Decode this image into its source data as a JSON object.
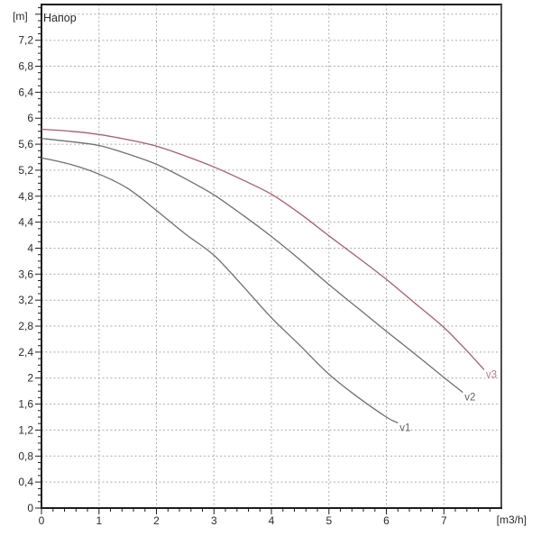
{
  "page": {
    "background_color": "#ffffff"
  },
  "chart_data": {
    "type": "line",
    "title": "Напор",
    "ylabel": "[m]",
    "xlabel": "[m3/h]",
    "x_range": [
      0,
      8
    ],
    "y_range": [
      0,
      7.75
    ],
    "x_major_step": 1,
    "x_minor_step": 0.2,
    "y_major_step": 0.4,
    "y_minor_step": 0.1,
    "x_tick_labels": [
      "0",
      "1",
      "2",
      "3",
      "4",
      "5",
      "6",
      "7"
    ],
    "y_tick_labels": [
      "0",
      "0,4",
      "0,8",
      "1,2",
      "1,6",
      "2",
      "2,4",
      "2,8",
      "3,2",
      "3,6",
      "4",
      "4,4",
      "4,8",
      "5,2",
      "5,6",
      "6",
      "6,4",
      "6,8",
      "7,2"
    ],
    "grid": {
      "show": true,
      "color": "#ababab",
      "dash": "2 2.5"
    },
    "colors": {
      "axis": "#1c1c1c",
      "frame_top": "#1c1c1c",
      "frame_right": "#4f4f4f",
      "tick": "#1c1c1c",
      "text": "#2a2a2a"
    },
    "legend_position": "none",
    "series": [
      {
        "name": "v1",
        "color": "#6f6f6f",
        "label_color": "#636363",
        "points": [
          [
            0,
            5.39
          ],
          [
            0.5,
            5.29
          ],
          [
            1,
            5.14
          ],
          [
            1.5,
            4.92
          ],
          [
            2,
            4.58
          ],
          [
            2.5,
            4.22
          ],
          [
            3,
            3.89
          ],
          [
            3.5,
            3.42
          ],
          [
            4,
            2.93
          ],
          [
            4.5,
            2.5
          ],
          [
            5,
            2.06
          ],
          [
            5.5,
            1.71
          ],
          [
            6,
            1.4
          ],
          [
            6.2,
            1.31
          ]
        ]
      },
      {
        "name": "v2",
        "color": "#6f6f6f",
        "label_color": "#636363",
        "points": [
          [
            0,
            5.69
          ],
          [
            0.5,
            5.64
          ],
          [
            1,
            5.58
          ],
          [
            1.5,
            5.45
          ],
          [
            2,
            5.29
          ],
          [
            2.5,
            5.07
          ],
          [
            3,
            4.82
          ],
          [
            3.5,
            4.51
          ],
          [
            4,
            4.18
          ],
          [
            4.5,
            3.82
          ],
          [
            5,
            3.44
          ],
          [
            5.5,
            3.08
          ],
          [
            6,
            2.72
          ],
          [
            6.5,
            2.37
          ],
          [
            7,
            2.01
          ],
          [
            7.33,
            1.78
          ]
        ]
      },
      {
        "name": "v3",
        "color": "#a2606d",
        "label_color": "#bd7683",
        "points": [
          [
            0,
            5.83
          ],
          [
            0.5,
            5.8
          ],
          [
            1,
            5.75
          ],
          [
            1.5,
            5.67
          ],
          [
            2,
            5.57
          ],
          [
            2.5,
            5.42
          ],
          [
            3,
            5.25
          ],
          [
            3.5,
            5.05
          ],
          [
            4,
            4.83
          ],
          [
            4.5,
            4.53
          ],
          [
            5,
            4.19
          ],
          [
            5.5,
            3.86
          ],
          [
            6,
            3.52
          ],
          [
            6.5,
            3.15
          ],
          [
            7,
            2.78
          ],
          [
            7.4,
            2.42
          ],
          [
            7.7,
            2.13
          ]
        ]
      }
    ]
  }
}
